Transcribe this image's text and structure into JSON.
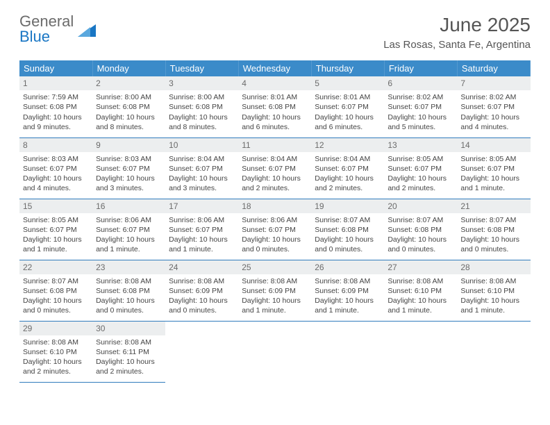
{
  "logo": {
    "part1": "General",
    "part2": "Blue"
  },
  "title": "June 2025",
  "location": "Las Rosas, Santa Fe, Argentina",
  "colors": {
    "header_bg": "#3b8bc9",
    "header_text": "#ffffff",
    "daynum_bg": "#eceeef",
    "daynum_text": "#6b6b6b",
    "rule": "#2f7bbd",
    "brand_blue": "#1976c4"
  },
  "weekdays": [
    "Sunday",
    "Monday",
    "Tuesday",
    "Wednesday",
    "Thursday",
    "Friday",
    "Saturday"
  ],
  "days": [
    {
      "n": "1",
      "sr": "7:59 AM",
      "ss": "6:08 PM",
      "dl": "10 hours and 9 minutes."
    },
    {
      "n": "2",
      "sr": "8:00 AM",
      "ss": "6:08 PM",
      "dl": "10 hours and 8 minutes."
    },
    {
      "n": "3",
      "sr": "8:00 AM",
      "ss": "6:08 PM",
      "dl": "10 hours and 8 minutes."
    },
    {
      "n": "4",
      "sr": "8:01 AM",
      "ss": "6:08 PM",
      "dl": "10 hours and 6 minutes."
    },
    {
      "n": "5",
      "sr": "8:01 AM",
      "ss": "6:07 PM",
      "dl": "10 hours and 6 minutes."
    },
    {
      "n": "6",
      "sr": "8:02 AM",
      "ss": "6:07 PM",
      "dl": "10 hours and 5 minutes."
    },
    {
      "n": "7",
      "sr": "8:02 AM",
      "ss": "6:07 PM",
      "dl": "10 hours and 4 minutes."
    },
    {
      "n": "8",
      "sr": "8:03 AM",
      "ss": "6:07 PM",
      "dl": "10 hours and 4 minutes."
    },
    {
      "n": "9",
      "sr": "8:03 AM",
      "ss": "6:07 PM",
      "dl": "10 hours and 3 minutes."
    },
    {
      "n": "10",
      "sr": "8:04 AM",
      "ss": "6:07 PM",
      "dl": "10 hours and 3 minutes."
    },
    {
      "n": "11",
      "sr": "8:04 AM",
      "ss": "6:07 PM",
      "dl": "10 hours and 2 minutes."
    },
    {
      "n": "12",
      "sr": "8:04 AM",
      "ss": "6:07 PM",
      "dl": "10 hours and 2 minutes."
    },
    {
      "n": "13",
      "sr": "8:05 AM",
      "ss": "6:07 PM",
      "dl": "10 hours and 2 minutes."
    },
    {
      "n": "14",
      "sr": "8:05 AM",
      "ss": "6:07 PM",
      "dl": "10 hours and 1 minute."
    },
    {
      "n": "15",
      "sr": "8:05 AM",
      "ss": "6:07 PM",
      "dl": "10 hours and 1 minute."
    },
    {
      "n": "16",
      "sr": "8:06 AM",
      "ss": "6:07 PM",
      "dl": "10 hours and 1 minute."
    },
    {
      "n": "17",
      "sr": "8:06 AM",
      "ss": "6:07 PM",
      "dl": "10 hours and 1 minute."
    },
    {
      "n": "18",
      "sr": "8:06 AM",
      "ss": "6:07 PM",
      "dl": "10 hours and 0 minutes."
    },
    {
      "n": "19",
      "sr": "8:07 AM",
      "ss": "6:08 PM",
      "dl": "10 hours and 0 minutes."
    },
    {
      "n": "20",
      "sr": "8:07 AM",
      "ss": "6:08 PM",
      "dl": "10 hours and 0 minutes."
    },
    {
      "n": "21",
      "sr": "8:07 AM",
      "ss": "6:08 PM",
      "dl": "10 hours and 0 minutes."
    },
    {
      "n": "22",
      "sr": "8:07 AM",
      "ss": "6:08 PM",
      "dl": "10 hours and 0 minutes."
    },
    {
      "n": "23",
      "sr": "8:08 AM",
      "ss": "6:08 PM",
      "dl": "10 hours and 0 minutes."
    },
    {
      "n": "24",
      "sr": "8:08 AM",
      "ss": "6:09 PM",
      "dl": "10 hours and 0 minutes."
    },
    {
      "n": "25",
      "sr": "8:08 AM",
      "ss": "6:09 PM",
      "dl": "10 hours and 1 minute."
    },
    {
      "n": "26",
      "sr": "8:08 AM",
      "ss": "6:09 PM",
      "dl": "10 hours and 1 minute."
    },
    {
      "n": "27",
      "sr": "8:08 AM",
      "ss": "6:10 PM",
      "dl": "10 hours and 1 minute."
    },
    {
      "n": "28",
      "sr": "8:08 AM",
      "ss": "6:10 PM",
      "dl": "10 hours and 1 minute."
    },
    {
      "n": "29",
      "sr": "8:08 AM",
      "ss": "6:10 PM",
      "dl": "10 hours and 2 minutes."
    },
    {
      "n": "30",
      "sr": "8:08 AM",
      "ss": "6:11 PM",
      "dl": "10 hours and 2 minutes."
    }
  ],
  "labels": {
    "sunrise": "Sunrise: ",
    "sunset": "Sunset: ",
    "daylight": "Daylight: "
  }
}
